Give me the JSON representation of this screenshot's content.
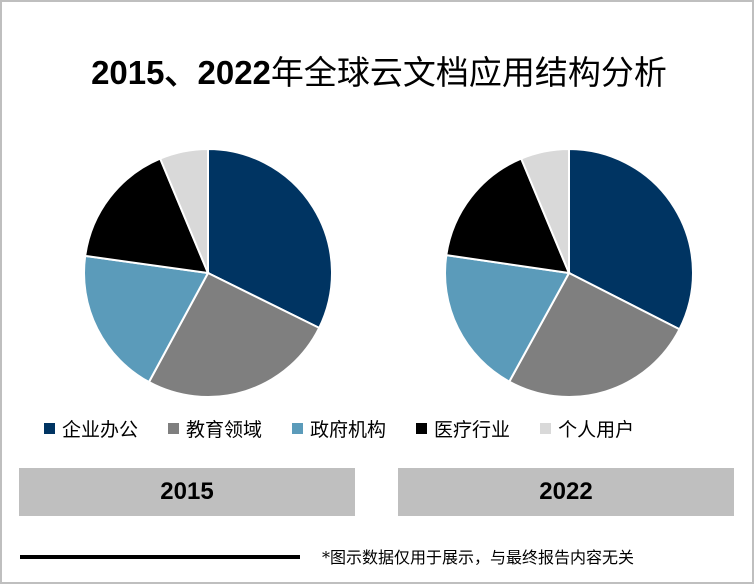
{
  "title": {
    "years": "2015、2022",
    "rest": "年全球云文档应用结构分析"
  },
  "legend": [
    {
      "label": "企业办公",
      "color": "#003462"
    },
    {
      "label": "教育领域",
      "color": "#7f7f7f"
    },
    {
      "label": "政府机构",
      "color": "#5b9bba"
    },
    {
      "label": "医疗行业",
      "color": "#000000"
    },
    {
      "label": "个人用户",
      "color": "#d9d9d9"
    }
  ],
  "year_labels": [
    "2015",
    "2022"
  ],
  "footnote": "*图示数据仅用于展示，与最终报告内容无关",
  "chart_data": [
    {
      "type": "pie",
      "title": "2015",
      "categories": [
        "企业办公",
        "教育领域",
        "政府机构",
        "医疗行业",
        "个人用户"
      ],
      "values": [
        32.3,
        25.6,
        19.3,
        16.5,
        6.3
      ]
    },
    {
      "type": "pie",
      "title": "2022",
      "categories": [
        "企业办公",
        "教育领域",
        "政府机构",
        "医疗行业",
        "个人用户"
      ],
      "values": [
        32.5,
        25.5,
        19.3,
        16.4,
        6.3
      ]
    }
  ]
}
